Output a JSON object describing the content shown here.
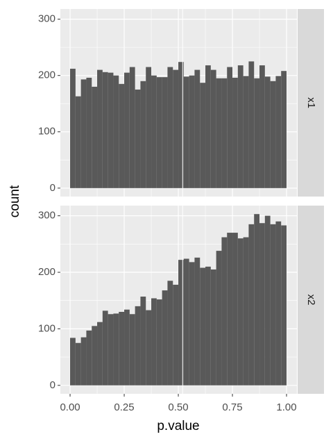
{
  "chart_data": {
    "type": "histogram",
    "xlabel": "p.value",
    "ylabel": "count",
    "bins": [
      0,
      0.025,
      0.05,
      0.075,
      0.1,
      0.125,
      0.15,
      0.175,
      0.2,
      0.225,
      0.25,
      0.275,
      0.3,
      0.325,
      0.35,
      0.375,
      0.4,
      0.425,
      0.45,
      0.475,
      0.5,
      0.525,
      0.55,
      0.575,
      0.6,
      0.625,
      0.65,
      0.675,
      0.7,
      0.725,
      0.75,
      0.775,
      0.8,
      0.825,
      0.85,
      0.875,
      0.9,
      0.925,
      0.95,
      0.975,
      1
    ],
    "facets": [
      {
        "label": "x1",
        "values": [
          212,
          163,
          193,
          196,
          180,
          210,
          206,
          205,
          200,
          185,
          205,
          215,
          175,
          190,
          215,
          200,
          197,
          197,
          215,
          210,
          224,
          198,
          200,
          210,
          187,
          218,
          210,
          195,
          195,
          215,
          196,
          218,
          199,
          225,
          195,
          218,
          198,
          190,
          199,
          208
        ]
      },
      {
        "label": "x2",
        "values": [
          84,
          75,
          85,
          97,
          105,
          112,
          132,
          126,
          127,
          130,
          134,
          126,
          140,
          157,
          133,
          154,
          152,
          168,
          185,
          178,
          222,
          224,
          218,
          226,
          208,
          210,
          205,
          238,
          262,
          270,
          270,
          260,
          262,
          285,
          303,
          287,
          300,
          285,
          290,
          283
        ]
      }
    ],
    "color": "#595959",
    "vline": 0.52,
    "xlim": [
      -0.045,
      1.048
    ],
    "xticks": [
      {
        "value": 0,
        "label": "0.00"
      },
      {
        "value": 0.25,
        "label": "0.25"
      },
      {
        "value": 0.5,
        "label": "0.50"
      },
      {
        "value": 0.75,
        "label": "0.75"
      },
      {
        "value": 1,
        "label": "1.00"
      }
    ],
    "ylim": [
      -15,
      318
    ],
    "yticks": [
      0,
      100,
      200,
      300
    ],
    "grid": true
  }
}
